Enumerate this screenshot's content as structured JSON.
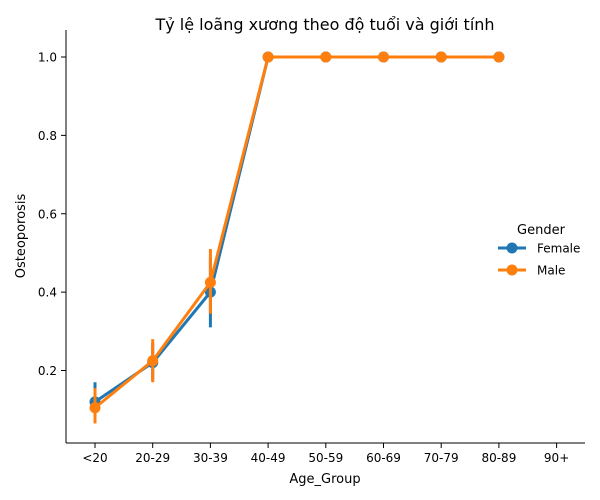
{
  "chart_data": {
    "type": "line",
    "title": "Tỷ lệ loãng xương theo độ tuổi và giới tính",
    "xlabel": "Age_Group",
    "ylabel": "Osteoporosis",
    "categories": [
      "<20",
      "20-29",
      "30-39",
      "40-49",
      "50-59",
      "60-69",
      "70-79",
      "80-89",
      "90+"
    ],
    "ylim": [
      0.03,
      1.05
    ],
    "yticks": [
      0.2,
      0.4,
      0.6,
      0.8,
      1.0
    ],
    "ytick_labels": [
      "0.2",
      "0.4",
      "0.6",
      "0.8",
      "1.0"
    ],
    "grid": false,
    "legend": {
      "title": "Gender",
      "placement": "center-right"
    },
    "series": [
      {
        "name": "Female",
        "color": "#1f77b4",
        "values": [
          0.12,
          0.22,
          0.4,
          1.0,
          1.0,
          1.0,
          1.0,
          1.0,
          null
        ],
        "ci_low": [
          0.085,
          0.175,
          0.31,
          1.0,
          1.0,
          1.0,
          1.0,
          1.0,
          null
        ],
        "ci_high": [
          0.17,
          0.27,
          0.49,
          1.0,
          1.0,
          1.0,
          1.0,
          1.0,
          null
        ]
      },
      {
        "name": "Male",
        "color": "#ff7f0e",
        "values": [
          0.105,
          0.225,
          0.425,
          1.0,
          1.0,
          1.0,
          1.0,
          1.0,
          null
        ],
        "ci_low": [
          0.065,
          0.17,
          0.345,
          1.0,
          1.0,
          1.0,
          1.0,
          1.0,
          null
        ],
        "ci_high": [
          0.155,
          0.28,
          0.51,
          1.0,
          1.0,
          1.0,
          1.0,
          1.0,
          null
        ]
      }
    ]
  }
}
